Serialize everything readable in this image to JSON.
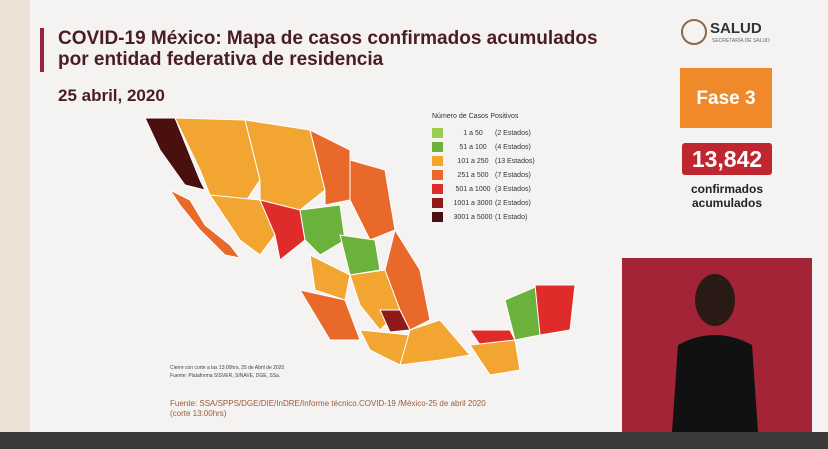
{
  "header": {
    "title_lines": [
      "COVID-19 México: Mapa de casos confirmados acumulados",
      "por entidad federativa de residencia"
    ],
    "date": "25 abril, 2020"
  },
  "logo": {
    "name": "SALUD",
    "subtitle": "SECRETARÍA DE SALUD"
  },
  "legend": {
    "title": "Número de Casos Positivos",
    "items": [
      {
        "range": "1 a 50",
        "count": "(2 Estados)",
        "color": "#9ccc4f"
      },
      {
        "range": "51 a 100",
        "count": "(4 Estados)",
        "color": "#6ab23c"
      },
      {
        "range": "101 a 250",
        "count": "(13 Estados)",
        "color": "#f2a531"
      },
      {
        "range": "251 a 500",
        "count": "(7 Estados)",
        "color": "#e8692a"
      },
      {
        "range": "501 a 1000",
        "count": "(3 Estados)",
        "color": "#e02b2b"
      },
      {
        "range": "1001 a 3000",
        "count": "(2 Estados)",
        "color": "#8e1a1a"
      },
      {
        "range": "3001 a 5000",
        "count": "(1 Estado)",
        "color": "#4a1010"
      }
    ]
  },
  "phase": "Fase 3",
  "total": "13,842",
  "total_label": [
    "confirmados",
    "acumulados"
  ],
  "notes": [
    "Cierre con corte a las 13:00hrs, 25 de Abril de 2020",
    "Fuente: Plataforma SISVER, SINAVE, DGE, SSa."
  ],
  "source": [
    "Fuente: SSA/SPPS/DGE/DIE/InDRE/Informe técnico.COVID-19 /México-25 de abril 2020",
    "(corte 13:00hrs)"
  ]
}
